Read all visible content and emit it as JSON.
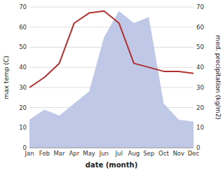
{
  "chart_data": {
    "type": "line",
    "categories": [
      "Jan",
      "Feb",
      "Mar",
      "Apr",
      "May",
      "Jun",
      "Jul",
      "Aug",
      "Sep",
      "Oct",
      "Nov",
      "Dec"
    ],
    "series": [
      {
        "type": "area",
        "color": "#c0c8e8",
        "axis": "y2",
        "values": [
          14,
          19,
          16,
          22,
          28,
          55,
          68,
          62,
          65,
          22,
          14,
          13
        ]
      },
      {
        "type": "line",
        "color": "#b03030",
        "values": [
          30,
          35,
          42,
          62,
          67,
          68,
          62,
          42,
          40,
          38,
          38,
          37
        ]
      }
    ],
    "xlabel": "date (month)",
    "ylabel": "max temp (C)",
    "y2label": "med. precipitation (kg/m2)",
    "ylim": [
      0,
      70
    ],
    "yticks": [
      0,
      10,
      20,
      30,
      40,
      50,
      60,
      70
    ],
    "y2lim": [
      0,
      70
    ],
    "y2ticks": [
      0,
      10,
      20,
      30,
      40,
      50,
      60,
      70
    ],
    "grid": true
  }
}
